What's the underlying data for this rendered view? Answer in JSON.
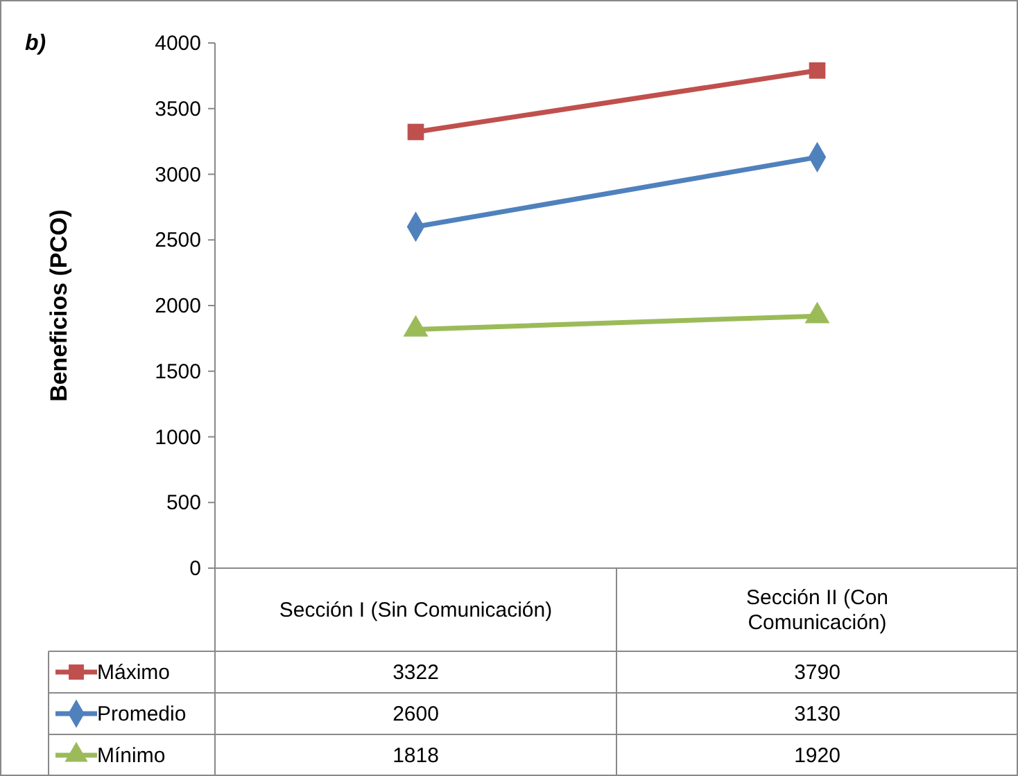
{
  "chart_data": {
    "type": "line",
    "annotations": [
      "b)"
    ],
    "ylabel": "Beneficios (PCO)",
    "categories": [
      "Sección I (Sin Comunicación)",
      "Sección II (Con Comunicación)"
    ],
    "series": [
      {
        "name": "Máximo",
        "color": "#c0504d",
        "marker": "square",
        "values": [
          3322,
          3790
        ]
      },
      {
        "name": "Promedio",
        "color": "#4f81bd",
        "marker": "diamond",
        "values": [
          2600,
          3130
        ]
      },
      {
        "name": "Mínimo",
        "color": "#9bbb59",
        "marker": "triangle",
        "values": [
          1818,
          1920
        ]
      }
    ],
    "ylim": [
      0,
      4000
    ],
    "yticks": [
      0,
      500,
      1000,
      1500,
      2000,
      2500,
      3000,
      3500,
      4000
    ],
    "data_labels": true,
    "legend": "bottom"
  }
}
